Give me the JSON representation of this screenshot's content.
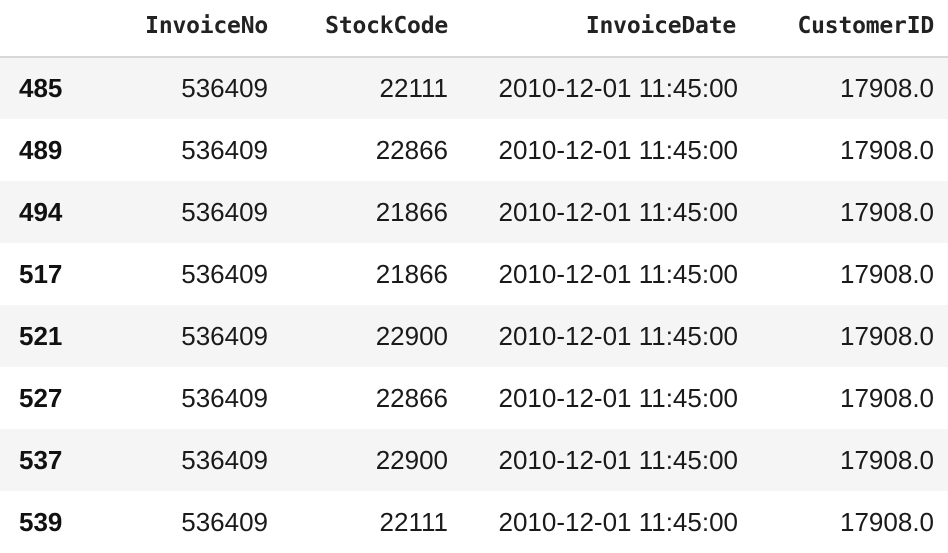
{
  "table": {
    "columns": [
      "",
      "InvoiceNo",
      "StockCode",
      "InvoiceDate",
      "CustomerID"
    ],
    "rows": [
      {
        "index": "485",
        "invoice_no": "536409",
        "stock_code": "22111",
        "invoice_date": "2010-12-01 11:45:00",
        "customer_id": "17908.0"
      },
      {
        "index": "489",
        "invoice_no": "536409",
        "stock_code": "22866",
        "invoice_date": "2010-12-01 11:45:00",
        "customer_id": "17908.0"
      },
      {
        "index": "494",
        "invoice_no": "536409",
        "stock_code": "21866",
        "invoice_date": "2010-12-01 11:45:00",
        "customer_id": "17908.0"
      },
      {
        "index": "517",
        "invoice_no": "536409",
        "stock_code": "21866",
        "invoice_date": "2010-12-01 11:45:00",
        "customer_id": "17908.0"
      },
      {
        "index": "521",
        "invoice_no": "536409",
        "stock_code": "22900",
        "invoice_date": "2010-12-01 11:45:00",
        "customer_id": "17908.0"
      },
      {
        "index": "527",
        "invoice_no": "536409",
        "stock_code": "22866",
        "invoice_date": "2010-12-01 11:45:00",
        "customer_id": "17908.0"
      },
      {
        "index": "537",
        "invoice_no": "536409",
        "stock_code": "22900",
        "invoice_date": "2010-12-01 11:45:00",
        "customer_id": "17908.0"
      },
      {
        "index": "539",
        "invoice_no": "536409",
        "stock_code": "22111",
        "invoice_date": "2010-12-01 11:45:00",
        "customer_id": "17908.0"
      }
    ]
  },
  "colors": {
    "stripe": "#f5f5f5",
    "background": "#ffffff",
    "header_rule": "#d8d8d8",
    "text": "#1a1a1a"
  }
}
